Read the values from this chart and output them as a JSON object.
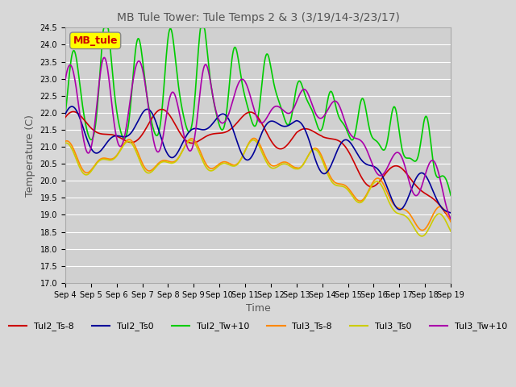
{
  "title": "MB Tule Tower: Tule Temps 2 & 3 (3/19/14-3/23/17)",
  "xlabel": "Time",
  "ylabel": "Temperature (C)",
  "ylim": [
    17.0,
    24.5
  ],
  "yticks": [
    17.0,
    17.5,
    18.0,
    18.5,
    19.0,
    19.5,
    20.0,
    20.5,
    21.0,
    21.5,
    22.0,
    22.5,
    23.0,
    23.5,
    24.0,
    24.5
  ],
  "xtick_labels": [
    "Sep 4",
    "Sep 5",
    "Sep 6",
    "Sep 7",
    "Sep 8",
    "Sep 9",
    "Sep 10",
    "Sep 11",
    "Sep 12",
    "Sep 13",
    "Sep 14",
    "Sep 15",
    "Sep 16",
    "Sep 17",
    "Sep 18",
    "Sep 19"
  ],
  "legend_label": "MB_tule",
  "legend_box_color": "#ffff00",
  "legend_text_color": "#cc0000",
  "bg_color": "#d8d8d8",
  "plot_bg_color": "#d0d0d0",
  "grid_color": "#ffffff",
  "series": {
    "Tul2_Ts-8": {
      "color": "#cc0000",
      "lw": 1.2
    },
    "Tul2_Ts0": {
      "color": "#000099",
      "lw": 1.2
    },
    "Tul2_Tw+10": {
      "color": "#00cc00",
      "lw": 1.2
    },
    "Tul3_Ts-8": {
      "color": "#ff8800",
      "lw": 1.2
    },
    "Tul3_Ts0": {
      "color": "#cccc00",
      "lw": 1.2
    },
    "Tul3_Tw+10": {
      "color": "#aa00aa",
      "lw": 1.2
    }
  }
}
